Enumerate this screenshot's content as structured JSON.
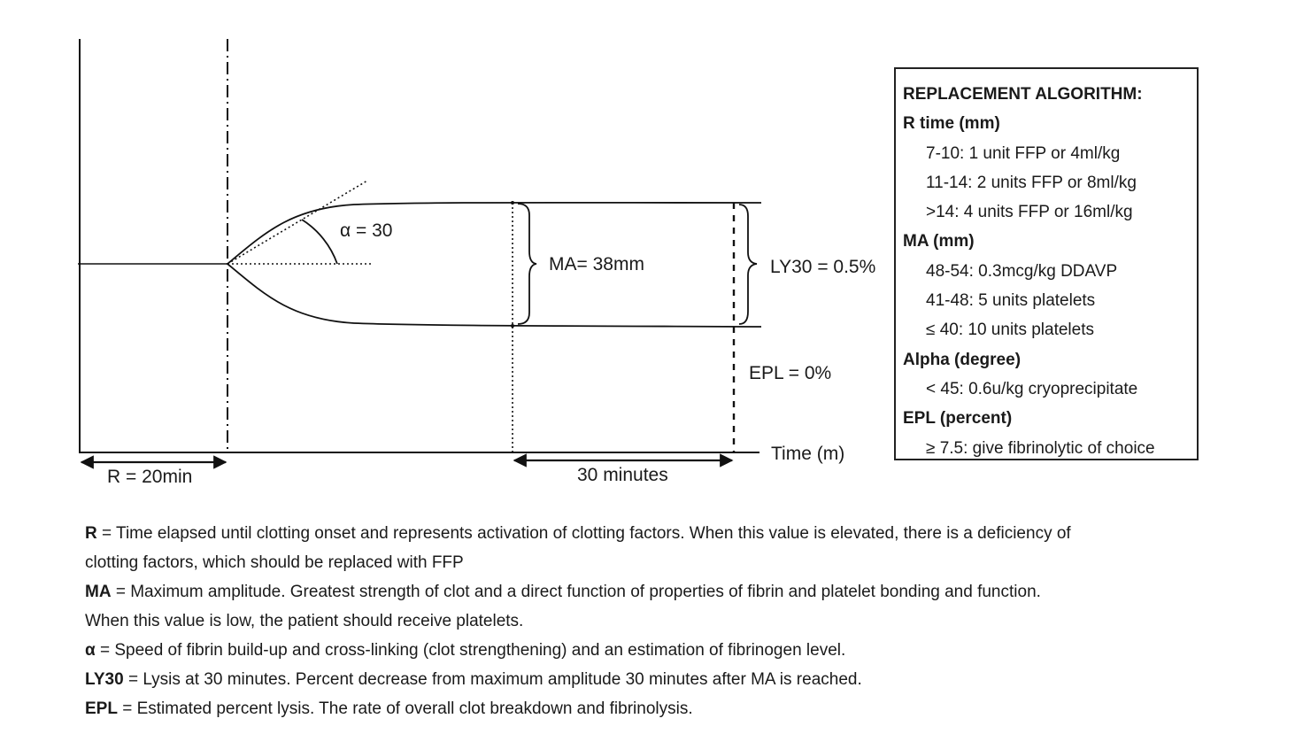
{
  "diagram": {
    "alpha_label": "α = 30",
    "ma_label": "MA= 38mm",
    "ly30_label": "LY30 = 0.5%",
    "epl_label": "EPL = 0%",
    "time_axis_label": "Time (m)",
    "r_label": "R = 20min",
    "thirty_label": "30 minutes"
  },
  "algorithm": {
    "title": "REPLACEMENT ALGORITHM:",
    "sections": [
      {
        "heading": "R time (mm)",
        "items": [
          "7-10: 1 unit FFP or 4ml/kg",
          "11-14: 2 units FFP or 8ml/kg",
          ">14: 4 units FFP or 16ml/kg"
        ]
      },
      {
        "heading": "MA (mm)",
        "items": [
          "48-54: 0.3mcg/kg DDAVP",
          "41-48: 5 units platelets",
          "≤ 40: 10 units platelets"
        ]
      },
      {
        "heading": "Alpha (degree)",
        "items": [
          "< 45: 0.6u/kg cryoprecipitate"
        ]
      },
      {
        "heading": "EPL (percent)",
        "items": [
          "≥ 7.5: give fibrinolytic of choice"
        ]
      }
    ]
  },
  "legend": [
    {
      "term": "R",
      "text": " = Time elapsed until clotting onset and represents activation of clotting factors. When this value is elevated, there is a deficiency of"
    },
    {
      "term": "",
      "text": "clotting factors, which should be replaced with FFP"
    },
    {
      "term": "MA",
      "text": " = Maximum amplitude. Greatest strength of clot and a direct function of properties of fibrin and platelet bonding and function."
    },
    {
      "term": "",
      "text": "When this value is low, the patient should receive platelets."
    },
    {
      "term": "α",
      "text": " = Speed of fibrin build-up and cross-linking (clot strengthening) and an estimation of fibrinogen level."
    },
    {
      "term": "LY30",
      "text": " = Lysis at 30 minutes. Percent decrease from maximum amplitude 30 minutes after MA is reached."
    },
    {
      "term": "EPL",
      "text": " = Estimated percent lysis. The rate of overall clot breakdown and fibrinolysis."
    }
  ]
}
